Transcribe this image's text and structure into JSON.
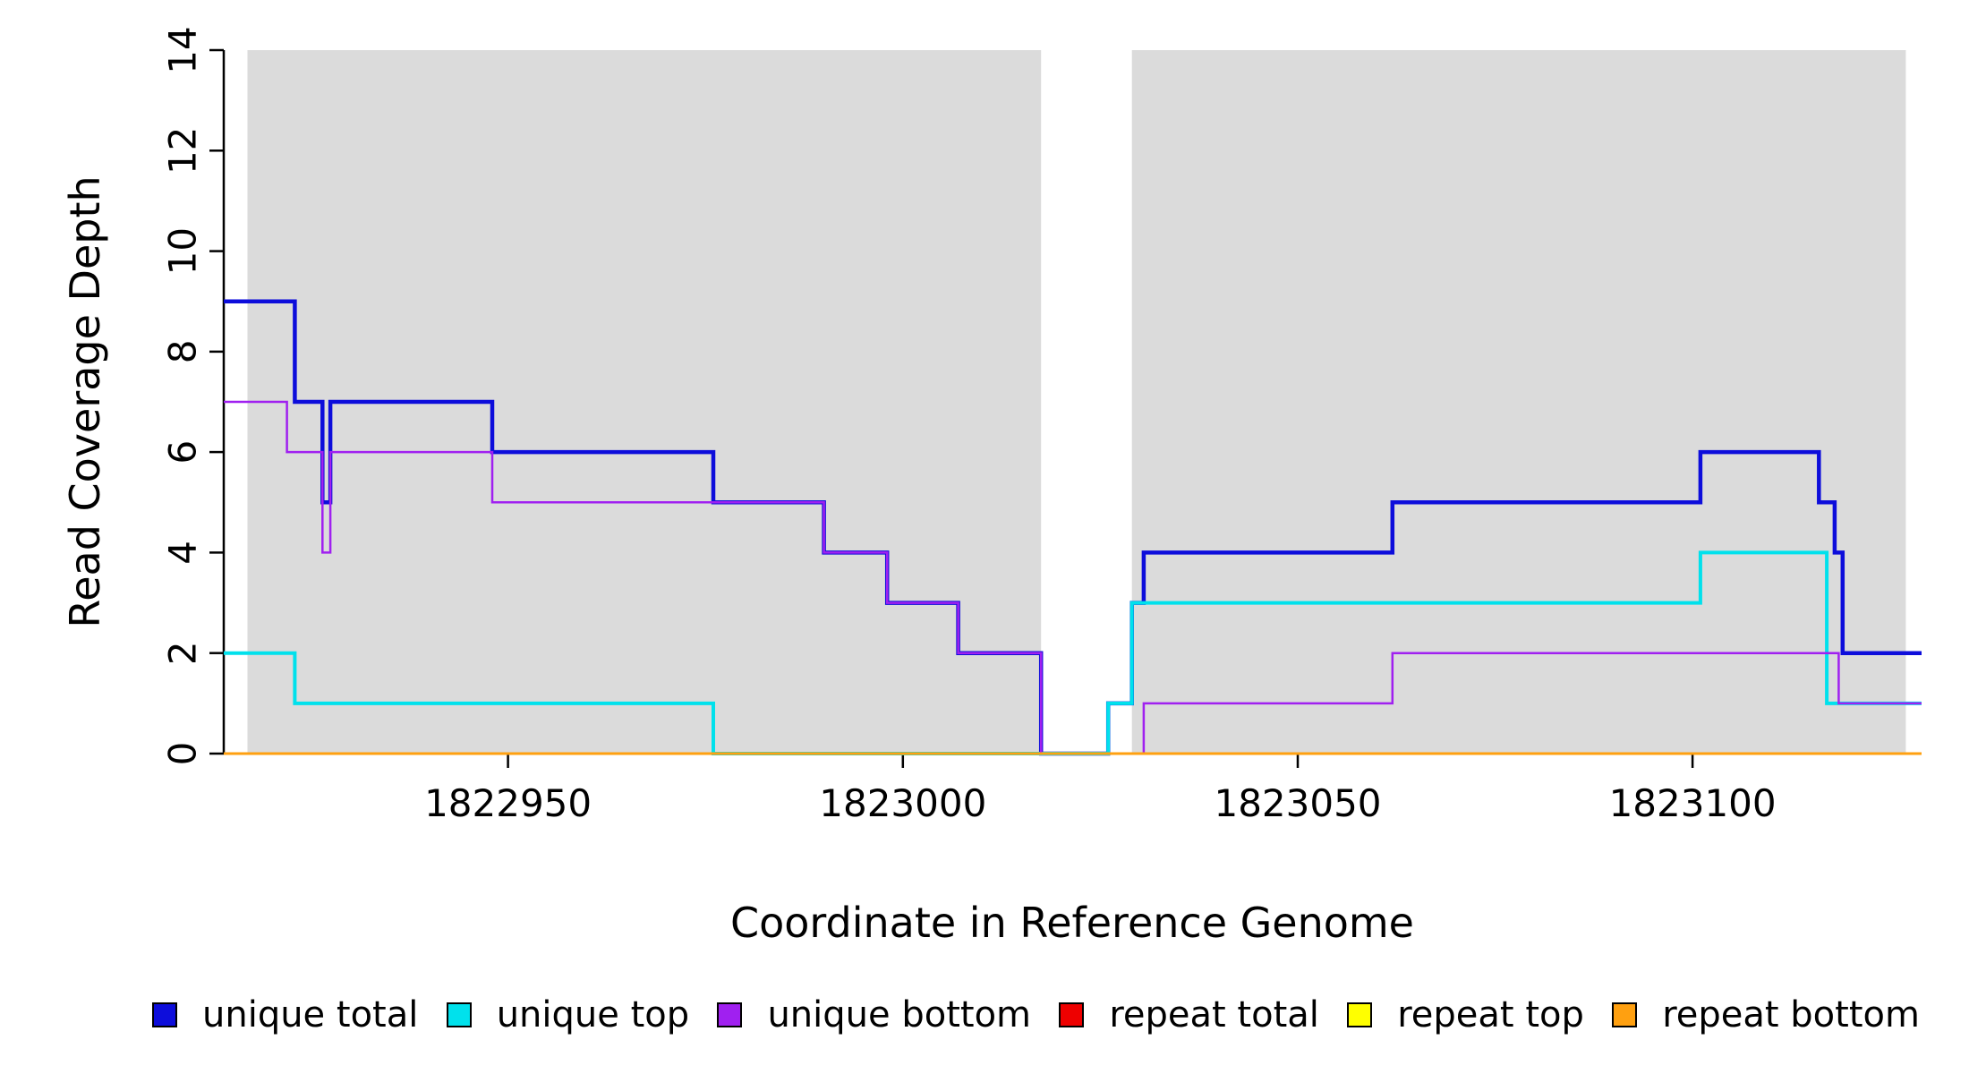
{
  "chart_data": {
    "type": "line",
    "subtype": "step",
    "title": "",
    "xlabel": "Coordinate in Reference Genome",
    "ylabel": "Read Coverage Depth",
    "xlim": [
      1822914,
      1823129
    ],
    "ylim": [
      0,
      14
    ],
    "xticks": [
      1822950,
      1823000,
      1823050,
      1823100
    ],
    "yticks": [
      0,
      2,
      4,
      6,
      8,
      10,
      12,
      14
    ],
    "grid": false,
    "legend_position": "bottom",
    "shaded_regions": {
      "color": "#DBDBDB",
      "ranges": [
        [
          1822917,
          1823017.5
        ],
        [
          1823029,
          1823127
        ]
      ]
    },
    "axis_color": "#000000",
    "series": [
      {
        "name": "unique total",
        "color": "#0D0DDB",
        "width": 4.5,
        "points": [
          [
            1822914,
            9
          ],
          [
            1822923,
            7
          ],
          [
            1822926.5,
            5
          ],
          [
            1822927.5,
            7
          ],
          [
            1822948,
            6
          ],
          [
            1822976,
            5
          ],
          [
            1822990,
            4
          ],
          [
            1822998,
            3
          ],
          [
            1823007,
            2
          ],
          [
            1823017.5,
            0
          ],
          [
            1823026,
            1
          ],
          [
            1823029,
            3
          ],
          [
            1823030.5,
            4
          ],
          [
            1823062,
            5
          ],
          [
            1823101,
            6
          ],
          [
            1823116,
            5
          ],
          [
            1823118,
            4
          ],
          [
            1823119,
            2
          ]
        ]
      },
      {
        "name": "unique top",
        "color": "#00E1EC",
        "width": 4,
        "points": [
          [
            1822914,
            2
          ],
          [
            1822923,
            1
          ],
          [
            1822976,
            0
          ],
          [
            1823026,
            1
          ],
          [
            1823029,
            3
          ],
          [
            1823101,
            4
          ],
          [
            1823117,
            1
          ]
        ]
      },
      {
        "name": "unique bottom",
        "color": "#A020F0",
        "width": 2.5,
        "points": [
          [
            1822914,
            7
          ],
          [
            1822922,
            6
          ],
          [
            1822926.5,
            4
          ],
          [
            1822927.5,
            6
          ],
          [
            1822948,
            5
          ],
          [
            1822990,
            4
          ],
          [
            1822998,
            3
          ],
          [
            1823007,
            2
          ],
          [
            1823017.5,
            0
          ],
          [
            1823030.5,
            1
          ],
          [
            1823062,
            2
          ],
          [
            1823118.5,
            1
          ]
        ]
      },
      {
        "name": "repeat total",
        "color": "#EE0000",
        "width": 2.5,
        "points": [
          [
            1822914,
            0
          ]
        ]
      },
      {
        "name": "repeat top",
        "color": "#FFFF00",
        "width": 2.5,
        "points": [
          [
            1822914,
            0
          ]
        ]
      },
      {
        "name": "repeat bottom",
        "color": "#FFA010",
        "width": 3,
        "points": [
          [
            1822914,
            0
          ]
        ]
      }
    ]
  }
}
